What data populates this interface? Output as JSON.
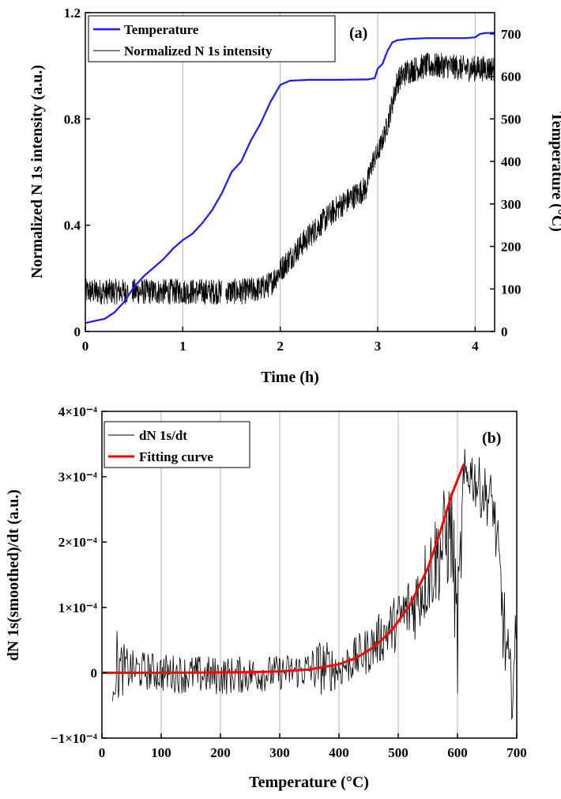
{
  "chart_data": [
    {
      "type": "line",
      "panel_label": "(a)",
      "xlabel": "Time (h)",
      "ylabel": "Normalized N 1s intensity (a.u.)",
      "y2label": "Temperature (°C)",
      "xlim": [
        0,
        4.2
      ],
      "ylim": [
        0,
        1.2
      ],
      "y2lim": [
        0,
        750
      ],
      "xticks": [
        "0",
        "1",
        "2",
        "3",
        "4"
      ],
      "yticks": [
        "0",
        "0.4",
        "0.8",
        "1.2"
      ],
      "y2ticks": [
        "0",
        "100",
        "200",
        "300",
        "400",
        "500",
        "600",
        "700"
      ],
      "grid": "vertical",
      "legend_position": "top-left",
      "series": [
        {
          "name": "Temperature",
          "axis": "right",
          "color": "#1a1aff",
          "x": [
            0,
            0.1,
            0.2,
            0.3,
            0.4,
            0.5,
            0.6,
            0.7,
            0.8,
            0.9,
            1.0,
            1.1,
            1.2,
            1.3,
            1.4,
            1.5,
            1.6,
            1.7,
            1.8,
            1.9,
            2.0,
            2.1,
            2.3,
            2.6,
            2.9,
            2.97,
            3.0,
            3.05,
            3.1,
            3.15,
            3.2,
            3.3,
            3.5,
            3.7,
            3.9,
            4.0,
            4.05,
            4.1,
            4.2
          ],
          "y": [
            20,
            25,
            30,
            45,
            70,
            105,
            130,
            150,
            170,
            195,
            215,
            230,
            255,
            285,
            325,
            375,
            400,
            450,
            490,
            540,
            580,
            590,
            592,
            592,
            593,
            596,
            618,
            630,
            660,
            680,
            685,
            688,
            690,
            690,
            690,
            692,
            700,
            702,
            703
          ]
        },
        {
          "name": "Normalized N 1s intensity",
          "axis": "left",
          "color": "#000000",
          "noisy": true,
          "gaps": [
            [
              0.44,
              0.48
            ],
            [
              1.4,
              1.44
            ]
          ],
          "x": [
            0,
            0.5,
            1.0,
            1.4,
            1.6,
            1.8,
            1.9,
            2.0,
            2.2,
            2.4,
            2.6,
            2.8,
            2.88,
            2.92,
            2.95,
            3.0,
            3.05,
            3.1,
            3.15,
            3.2,
            3.3,
            3.5,
            3.7,
            3.9,
            4.1,
            4.2
          ],
          "y": [
            0.15,
            0.15,
            0.15,
            0.15,
            0.15,
            0.16,
            0.18,
            0.23,
            0.32,
            0.4,
            0.47,
            0.52,
            0.54,
            0.6,
            0.64,
            0.67,
            0.72,
            0.78,
            0.86,
            0.94,
            0.98,
            1.0,
            1.0,
            0.99,
            0.99,
            0.99
          ],
          "noise": [
            0.035,
            0.035,
            0.035,
            0.035,
            0.035,
            0.035,
            0.035,
            0.035,
            0.035,
            0.035,
            0.035,
            0.035,
            0.035,
            0.03,
            0.03,
            0.03,
            0.03,
            0.03,
            0.035,
            0.035,
            0.035,
            0.035,
            0.035,
            0.035,
            0.035,
            0.035
          ]
        }
      ]
    },
    {
      "type": "line",
      "panel_label": "(b)",
      "xlabel": "Temperature (°C)",
      "ylabel": "dN 1s(smoothed)/dt (a.u.)",
      "xlim": [
        0,
        700
      ],
      "ylim": [
        -0.0001,
        0.0004
      ],
      "xticks": [
        "0",
        "100",
        "200",
        "300",
        "400",
        "500",
        "600",
        "700"
      ],
      "yticks": [
        "−1×10⁻⁴",
        "0",
        "1×10⁻⁴",
        "2×10⁻⁴",
        "3×10⁻⁴",
        "4×10⁻⁴"
      ],
      "grid": "vertical",
      "legend_position": "top-left",
      "series": [
        {
          "name": "dN 1s/dt",
          "color": "#000000",
          "noisy": true,
          "x": [
            18,
            30,
            50,
            100,
            200,
            300,
            350,
            370,
            400,
            450,
            500,
            530,
            560,
            590,
            600,
            610,
            620,
            640,
            660,
            670,
            680,
            690,
            700
          ],
          "y": [
            2e-05,
            5e-06,
            5e-06,
            0.0,
            -5e-06,
            0.0,
            5e-06,
            1e-05,
            5e-06,
            3.5e-05,
            8e-05,
            0.00011,
            0.00017,
            0.00022,
            5e-05,
            0.00028,
            0.00031,
            0.00028,
            0.00026,
            0.00016,
            5e-05,
            -3e-05,
            5e-05
          ],
          "noise": [
            5e-05,
            3e-05,
            2e-05,
            2e-05,
            2e-05,
            1.8e-05,
            2e-05,
            3e-05,
            2e-05,
            2.5e-05,
            3e-05,
            4e-05,
            5e-05,
            6e-05,
            6e-05,
            4e-05,
            3e-05,
            3e-05,
            3e-05,
            4e-05,
            5e-05,
            4e-05,
            4e-05
          ]
        },
        {
          "name": "Fitting curve",
          "color": "#ff0000",
          "x": [
            0,
            100,
            200,
            250,
            300,
            350,
            400,
            430,
            460,
            490,
            520,
            550,
            570,
            590,
            610
          ],
          "y": [
            0.0,
            0.0,
            5e-07,
            1e-06,
            2e-06,
            5e-06,
            1.3e-05,
            2.3e-05,
            4e-05,
            6.6e-05,
            0.000104,
            0.00016,
            0.000213,
            0.000272,
            0.000318
          ]
        }
      ]
    }
  ]
}
